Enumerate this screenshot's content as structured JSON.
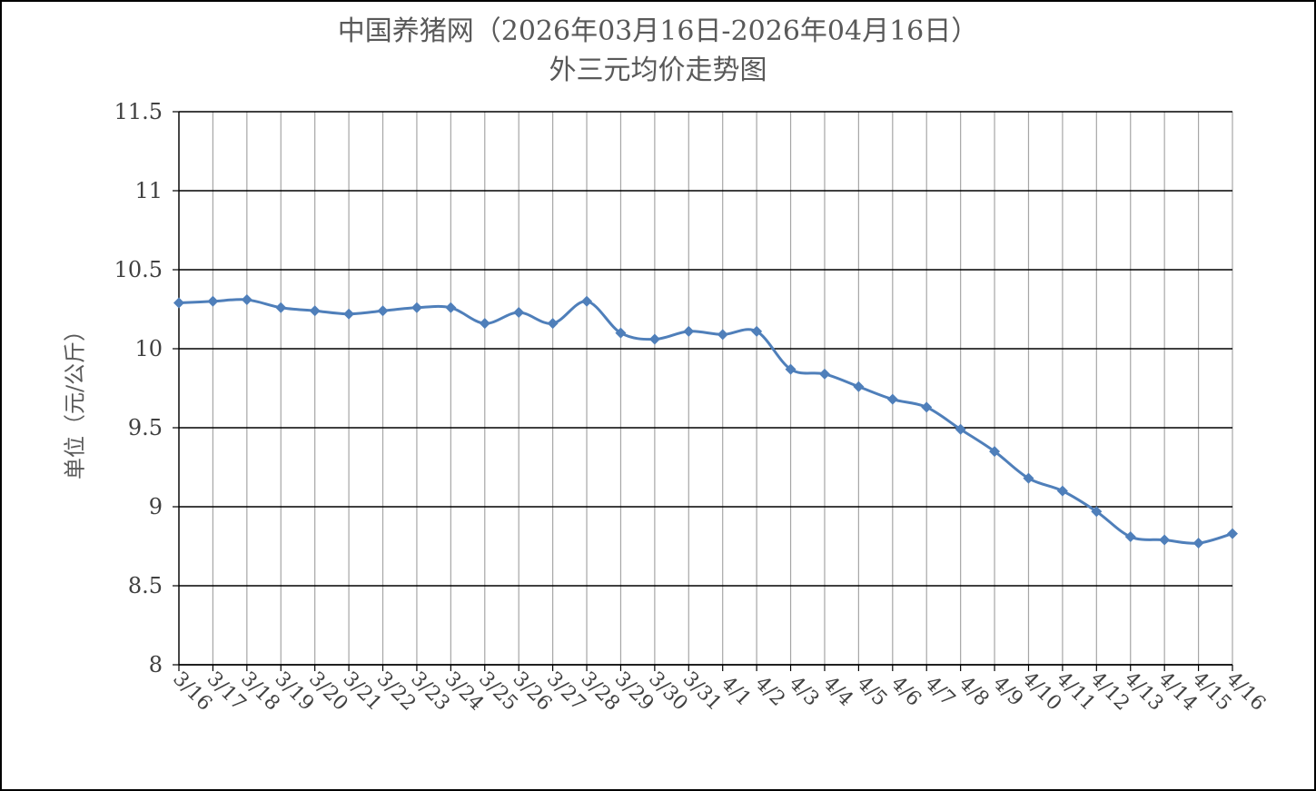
{
  "chart_data": {
    "type": "line",
    "title": "中国养猪网（2026年03月16日-2026年04月16日）",
    "subtitle": "外三元均价走势图",
    "xlabel": "",
    "ylabel": "单位（元/公斤）",
    "ylim": [
      8,
      11.5
    ],
    "yticks": [
      "8",
      "8.5",
      "9",
      "9.5",
      "10",
      "10.5",
      "11",
      "11.5"
    ],
    "ytick_values": [
      8,
      8.5,
      9,
      9.5,
      10,
      10.5,
      11,
      11.5
    ],
    "grid": true,
    "legend": "none",
    "colors": {
      "line": "#4f7fba",
      "marker": "#4f7fba",
      "major_grid": "#000000",
      "minor_grid": "#a6a6a6"
    },
    "categories": [
      "3/16",
      "3/17",
      "3/18",
      "3/19",
      "3/20",
      "3/21",
      "3/22",
      "3/23",
      "3/24",
      "3/25",
      "3/26",
      "3/27",
      "3/28",
      "3/29",
      "3/30",
      "3/31",
      "4/1",
      "4/2",
      "4/3",
      "4/4",
      "4/5",
      "4/6",
      "4/7",
      "4/8",
      "4/9",
      "4/10",
      "4/11",
      "4/12",
      "4/13",
      "4/14",
      "4/15",
      "4/16"
    ],
    "series": [
      {
        "values": [
          10.29,
          10.3,
          10.31,
          10.26,
          10.24,
          10.22,
          10.24,
          10.26,
          10.26,
          10.16,
          10.23,
          10.16,
          10.3,
          10.1,
          10.06,
          10.11,
          10.09,
          10.11,
          9.87,
          9.84,
          9.76,
          9.68,
          9.63,
          9.49,
          9.35,
          9.18,
          9.1,
          8.97,
          8.81,
          8.79,
          8.77,
          8.83
        ]
      }
    ]
  }
}
